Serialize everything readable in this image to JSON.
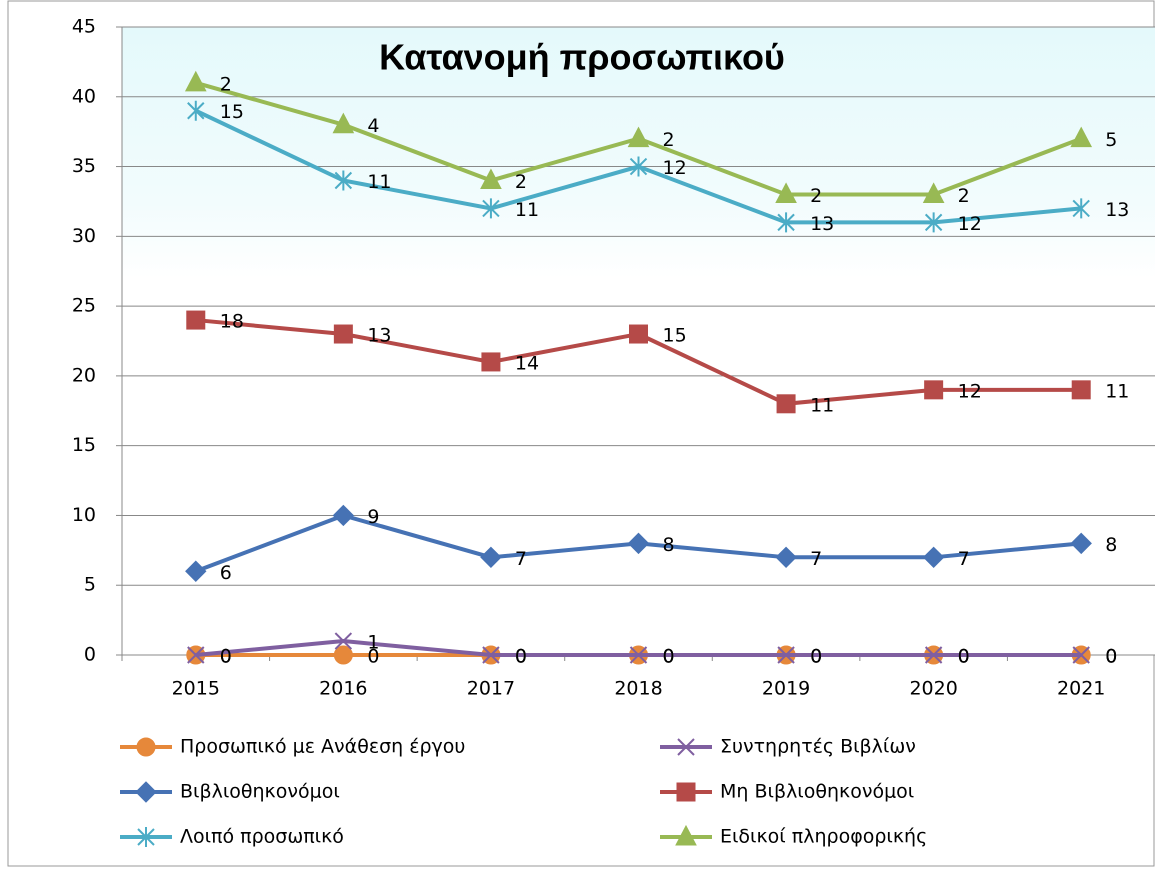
{
  "chart_data": {
    "type": "line",
    "stacked": true,
    "title": "Κατανομή προσωπικού",
    "categories": [
      "2015",
      "2016",
      "2017",
      "2018",
      "2019",
      "2020",
      "2021"
    ],
    "series": [
      {
        "name": "Προσωπικό με Ανάθεση έργου",
        "color": "#e6883a",
        "marker": "circle",
        "values": [
          0,
          0,
          0,
          0,
          0,
          0,
          0
        ]
      },
      {
        "name": "Συντηρητές Βιβλίων",
        "color": "#7f5fa0",
        "marker": "x",
        "values": [
          0,
          1,
          0,
          0,
          0,
          0,
          0
        ]
      },
      {
        "name": "Βιβλιοθηκονόμοι",
        "color": "#4672b4",
        "marker": "diamond",
        "values": [
          6,
          9,
          7,
          8,
          7,
          7,
          8
        ]
      },
      {
        "name": "Μη Βιβλιοθηκονόμοι",
        "color": "#b54a48",
        "marker": "square",
        "values": [
          18,
          13,
          14,
          15,
          11,
          12,
          11
        ]
      },
      {
        "name": "Λοιπό  προσωπικό",
        "color": "#4bacc6",
        "marker": "star",
        "values": [
          15,
          11,
          11,
          12,
          13,
          12,
          13
        ]
      },
      {
        "name": "Ειδικοί πληροφορικής",
        "color": "#98b954",
        "marker": "triangle",
        "values": [
          2,
          4,
          2,
          2,
          2,
          2,
          5
        ]
      }
    ],
    "ylim": [
      0,
      45
    ],
    "yticks": [
      0,
      5,
      10,
      15,
      20,
      25,
      30,
      35,
      40,
      45
    ],
    "grid": true,
    "legend": "bottom"
  }
}
